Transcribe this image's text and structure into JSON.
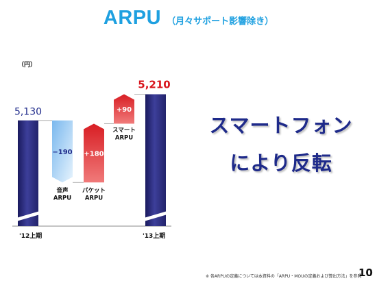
{
  "title": {
    "main": "ARPU",
    "sub": "（月々サポート影響除き）"
  },
  "chart_data": {
    "type": "waterfall",
    "unit_label": "（円）",
    "start": {
      "category": "'12上期",
      "value": 5130,
      "value_label": "5,130"
    },
    "steps": [
      {
        "name_lines": [
          "音声",
          "ARPU"
        ],
        "delta": -190,
        "delta_label": "−190",
        "color": "#a8d4f4",
        "label_color": "#1e2a8a"
      },
      {
        "name_lines": [
          "パケット",
          "ARPU"
        ],
        "delta": 180,
        "delta_label": "+180",
        "color": "#e13a3a",
        "label_color": "#ffffff"
      },
      {
        "name_lines": [
          "スマート",
          "ARPU"
        ],
        "delta": 90,
        "delta_label": "+90",
        "color": "#e13a3a",
        "label_color": "#ffffff"
      }
    ],
    "end": {
      "category": "'13上期",
      "value": 5210,
      "value_label": "5,210"
    },
    "colors": {
      "total_bar": "#2e2f86",
      "start_label": "#1e2a8a",
      "end_label": "#d8141c",
      "axis": "#888888",
      "connector": "#b0b0b0"
    },
    "axis_break": true
  },
  "headline": {
    "line1": "スマートフォン",
    "line2": "により反転"
  },
  "footnote": "※ 各ARPUの定義については本資料の「ARPU・MOUの定義および算出方法」を参照",
  "page_number": "10"
}
